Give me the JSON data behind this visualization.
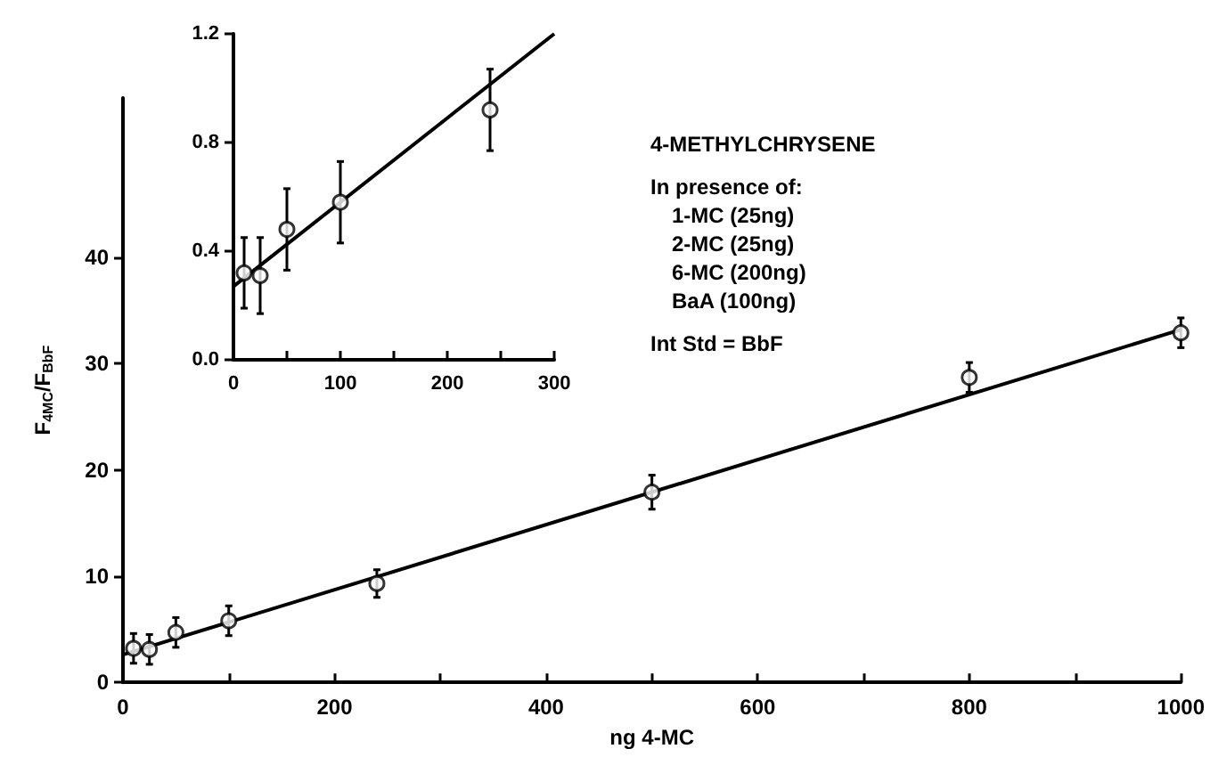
{
  "chart_data": [
    {
      "type": "scatter",
      "xlabel": "ng 4-MC",
      "ylabel": "F$_{4MC}$/F$_{BbF}$",
      "xlim": [
        0,
        1000
      ],
      "ylim": [
        0,
        55
      ],
      "xticks": [
        0,
        {
          "value": 100,
          "label": null
        },
        200,
        {
          "value": 300,
          "label": null
        },
        400,
        {
          "value": 500,
          "label": null
        },
        600,
        {
          "value": 700,
          "label": null
        },
        800,
        {
          "value": 900,
          "label": null
        },
        1000
      ],
      "yticks": [
        0,
        10,
        20,
        30,
        40
      ],
      "marker": "circle",
      "annotations": [
        "4-METHYLCHRYSENE",
        "In presence of:",
        "1-MC (25ng)",
        "2-MC (25ng)",
        "6-MC (200ng)",
        "BaA (100ng)",
        "Int Std = BbF"
      ],
      "series": [
        {
          "color": "#000000",
          "x": [
            10,
            25,
            50,
            100,
            240,
            500,
            800,
            1000
          ],
          "values": [
            3.2,
            3.1,
            4.7,
            5.8,
            9.3,
            17.9,
            28.7,
            32.9
          ],
          "errors": [
            1.4,
            1.4,
            1.4,
            1.4,
            1.3,
            1.6,
            1.4,
            1.4
          ]
        },
        {
          "type": "line",
          "marker": "none",
          "color": "#000000",
          "x": [
            0,
            1000
          ],
          "values": [
            2.6,
            33.2
          ]
        }
      ]
    },
    {
      "type": "scatter",
      "xlim": [
        0,
        300
      ],
      "ylim": [
        0,
        1.2
      ],
      "xticks": [
        0,
        {
          "value": 50,
          "label": null
        },
        100,
        {
          "value": 150,
          "label": null
        },
        200,
        {
          "value": 250,
          "label": null
        },
        300
      ],
      "yticks": [
        {
          "value": 0,
          "label": "0.0"
        },
        0.4,
        0.8,
        1.2
      ],
      "marker": "circle",
      "series": [
        {
          "color": "#000000",
          "x": [
            10,
            25,
            50,
            100,
            240
          ],
          "values": [
            0.32,
            0.31,
            0.48,
            0.58,
            0.92
          ],
          "errors": [
            0.13,
            0.14,
            0.15,
            0.15,
            0.15
          ]
        },
        {
          "type": "line",
          "marker": "none",
          "color": "#000000",
          "x": [
            0,
            300
          ],
          "values": [
            0.27,
            1.2
          ]
        }
      ]
    }
  ]
}
